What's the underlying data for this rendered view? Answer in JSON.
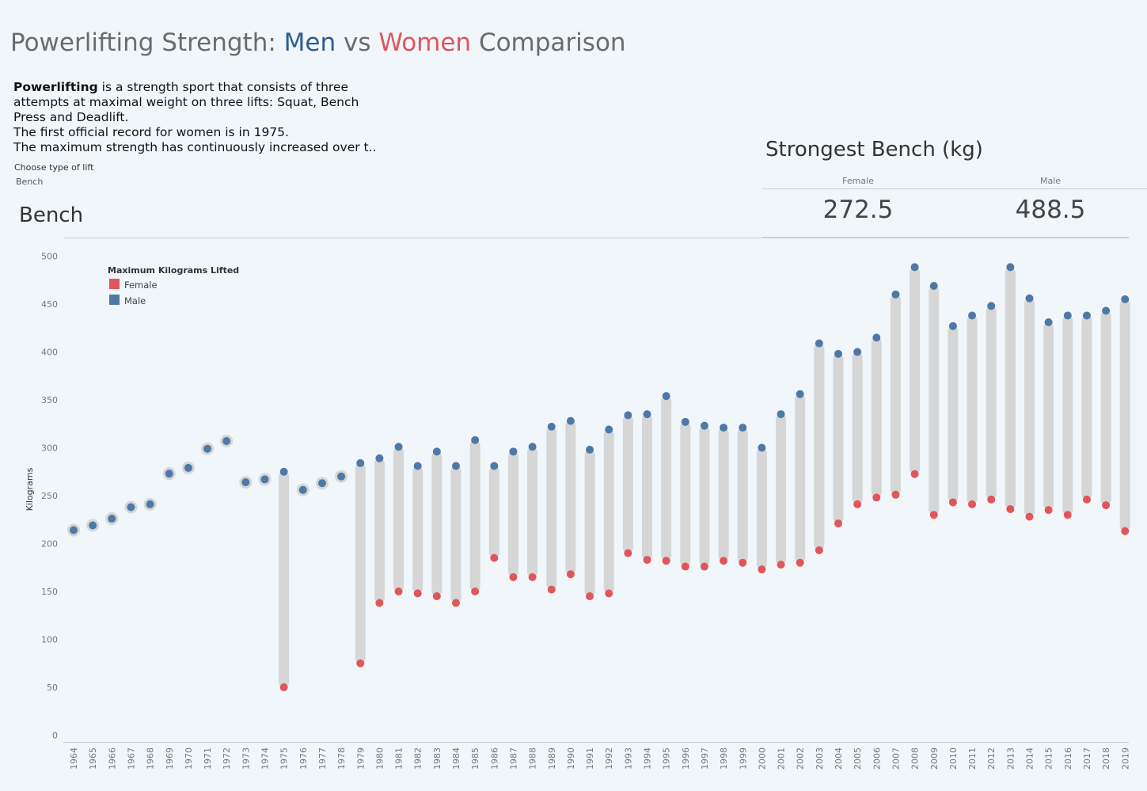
{
  "title": {
    "part1": "Powerlifting Strength: ",
    "men": "Men",
    "vs": " vs ",
    "women": "Women",
    "part2": " Comparison"
  },
  "intro": {
    "bold": "Powerlifting",
    "line1": " is a strength sport that consists of three",
    "line2": "attempts at maximal weight on three lifts: Squat, Bench",
    "line3": "Press and Deadlift.",
    "line4": "The first official record for women is in 1975.",
    "line5": "The maximum strength has continuously increased over t.."
  },
  "filter": {
    "label": "Choose type of lift",
    "value": "Bench"
  },
  "section_title": "Bench",
  "kpi": {
    "title": "Strongest Bench (kg)",
    "female_label": "Female",
    "female_value": "272.5",
    "male_label": "Male",
    "male_value": "488.5"
  },
  "colors": {
    "female": "#e0565b",
    "male": "#4e79a7",
    "bar": "#d6d6d6"
  },
  "chart_data": {
    "type": "dumbbell",
    "ylabel": "Kilograms",
    "ylim": [
      0,
      500
    ],
    "yticks": [
      0,
      50,
      100,
      150,
      200,
      250,
      300,
      350,
      400,
      450,
      500
    ],
    "legend": {
      "title": "Maximum Kilograms Lifted",
      "position": "top-left",
      "entries": [
        "Female",
        "Male"
      ]
    },
    "categories": [
      "1964",
      "1965",
      "1966",
      "1967",
      "1968",
      "1969",
      "1970",
      "1971",
      "1972",
      "1973",
      "1974",
      "1975",
      "1976",
      "1977",
      "1978",
      "1979",
      "1980",
      "1981",
      "1982",
      "1983",
      "1984",
      "1985",
      "1986",
      "1987",
      "1988",
      "1989",
      "1990",
      "1991",
      "1992",
      "1993",
      "1994",
      "1995",
      "1996",
      "1997",
      "1998",
      "1999",
      "2000",
      "2001",
      "2002",
      "2003",
      "2004",
      "2005",
      "2006",
      "2007",
      "2008",
      "2009",
      "2010",
      "2011",
      "2012",
      "2013",
      "2014",
      "2015",
      "2016",
      "2017",
      "2018",
      "2019"
    ],
    "series": [
      {
        "name": "Female",
        "values": [
          null,
          null,
          null,
          null,
          null,
          null,
          null,
          null,
          null,
          null,
          null,
          50,
          null,
          null,
          null,
          75,
          138,
          150,
          148,
          145,
          138,
          150,
          185,
          165,
          165,
          152,
          168,
          145,
          148,
          190,
          183,
          182,
          176,
          176,
          182,
          180,
          173,
          178,
          180,
          193,
          221,
          241,
          248,
          251,
          272.5,
          230,
          243,
          241,
          246,
          236,
          228,
          235,
          230,
          246,
          240,
          213
        ]
      },
      {
        "name": "Male",
        "values": [
          214,
          219,
          226,
          238,
          241,
          273,
          279,
          299,
          307,
          264,
          267,
          275,
          256,
          263,
          270,
          284,
          289,
          301,
          281,
          296,
          281,
          308,
          281,
          296,
          301,
          322,
          328,
          298,
          319,
          334,
          335,
          354,
          327,
          323,
          321,
          321,
          300,
          335,
          356,
          409,
          398,
          400,
          415,
          460,
          488.5,
          469,
          427,
          438,
          448,
          488.5,
          456,
          431,
          438,
          438,
          443,
          455
        ]
      }
    ]
  }
}
